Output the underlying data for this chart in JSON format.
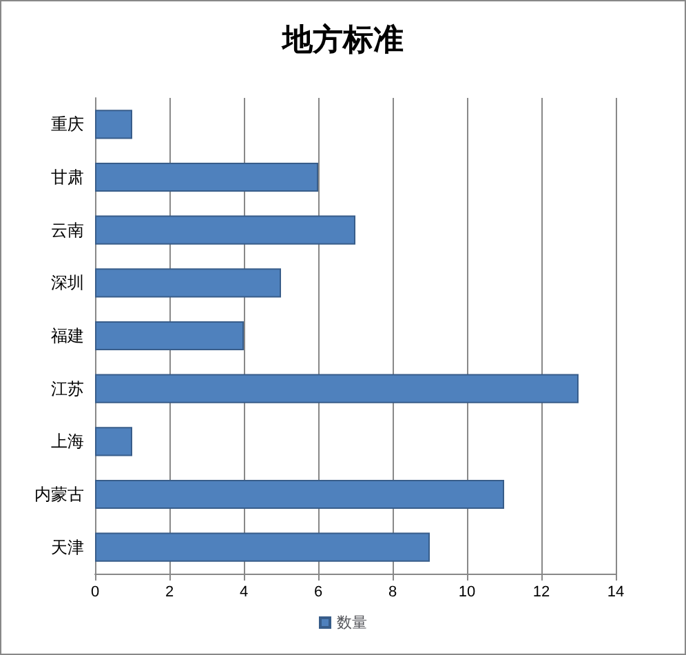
{
  "chart_data": {
    "type": "bar",
    "orientation": "horizontal",
    "title": "地方标准",
    "categories": [
      "重庆",
      "甘肃",
      "云南",
      "深圳",
      "福建",
      "江苏",
      "上海",
      "内蒙古",
      "天津"
    ],
    "series": [
      {
        "name": "数量",
        "color": "#4f81bd",
        "values": [
          1,
          6,
          7,
          5,
          4,
          13,
          1,
          11,
          9
        ]
      }
    ],
    "xlim": [
      0,
      14
    ],
    "xticks": [
      0,
      2,
      4,
      6,
      8,
      10,
      12,
      14
    ],
    "grid": "x",
    "legend": "bottom"
  }
}
